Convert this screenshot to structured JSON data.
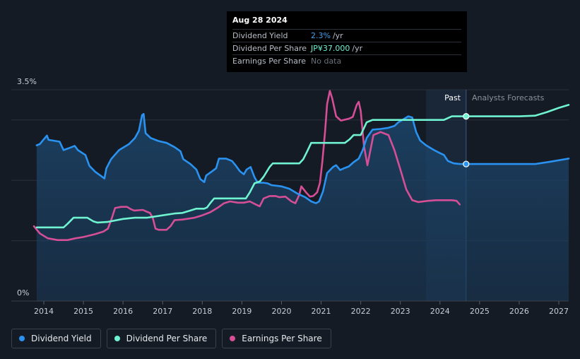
{
  "tooltip": {
    "date": "Aug 28 2024",
    "rows": [
      {
        "label": "Dividend Yield",
        "value": "2.3%",
        "unit": "/yr",
        "color": "#3ea0f0"
      },
      {
        "label": "Dividend Per Share",
        "value": "JP¥37.000",
        "unit": "/yr",
        "color": "#6ff3d0"
      },
      {
        "label": "Earnings Per Share",
        "value": "No data",
        "unit": "",
        "color": "#6b727d"
      }
    ]
  },
  "labels": {
    "past": "Past",
    "forecast": "Analysts Forecasts"
  },
  "legend": [
    {
      "label": "Dividend Yield",
      "color": "#2a92f0"
    },
    {
      "label": "Dividend Per Share",
      "color": "#6ff3d0"
    },
    {
      "label": "Earnings Per Share",
      "color": "#d64f96"
    }
  ],
  "chart_data": {
    "type": "line",
    "x_ticks": [
      "2014",
      "2015",
      "2016",
      "2017",
      "2018",
      "2019",
      "2020",
      "2021",
      "2022",
      "2023",
      "2024",
      "2025",
      "2026",
      "2027"
    ],
    "y_ticks": [
      "3.5%",
      "0%"
    ],
    "ylim": [
      0,
      3.5
    ],
    "xlim": [
      2013.6,
      2027.25
    ],
    "past_end": 2024.66,
    "highlight_start": 2023.65,
    "series": [
      {
        "name": "Dividend Yield",
        "color": "#2a92f0",
        "fill": true,
        "points": [
          [
            2013.82,
            2.58
          ],
          [
            2013.9,
            2.6
          ],
          [
            2014.0,
            2.68
          ],
          [
            2014.08,
            2.74
          ],
          [
            2014.12,
            2.67
          ],
          [
            2014.4,
            2.64
          ],
          [
            2014.5,
            2.5
          ],
          [
            2014.62,
            2.53
          ],
          [
            2014.78,
            2.57
          ],
          [
            2014.86,
            2.5
          ],
          [
            2015.05,
            2.42
          ],
          [
            2015.15,
            2.24
          ],
          [
            2015.3,
            2.14
          ],
          [
            2015.45,
            2.07
          ],
          [
            2015.53,
            2.03
          ],
          [
            2015.58,
            2.2
          ],
          [
            2015.7,
            2.35
          ],
          [
            2015.9,
            2.5
          ],
          [
            2016.15,
            2.6
          ],
          [
            2016.3,
            2.7
          ],
          [
            2016.4,
            2.82
          ],
          [
            2016.48,
            3.08
          ],
          [
            2016.52,
            3.1
          ],
          [
            2016.57,
            2.78
          ],
          [
            2016.7,
            2.7
          ],
          [
            2016.9,
            2.65
          ],
          [
            2017.1,
            2.62
          ],
          [
            2017.3,
            2.55
          ],
          [
            2017.45,
            2.48
          ],
          [
            2017.52,
            2.35
          ],
          [
            2017.7,
            2.27
          ],
          [
            2017.85,
            2.18
          ],
          [
            2017.95,
            2.02
          ],
          [
            2018.05,
            1.97
          ],
          [
            2018.1,
            2.08
          ],
          [
            2018.25,
            2.15
          ],
          [
            2018.35,
            2.2
          ],
          [
            2018.42,
            2.36
          ],
          [
            2018.6,
            2.36
          ],
          [
            2018.75,
            2.32
          ],
          [
            2018.85,
            2.24
          ],
          [
            2018.95,
            2.15
          ],
          [
            2019.05,
            2.1
          ],
          [
            2019.12,
            2.18
          ],
          [
            2019.22,
            2.22
          ],
          [
            2019.32,
            2.05
          ],
          [
            2019.4,
            1.96
          ],
          [
            2019.55,
            1.96
          ],
          [
            2019.65,
            1.95
          ],
          [
            2019.75,
            1.92
          ],
          [
            2020.0,
            1.9
          ],
          [
            2020.2,
            1.86
          ],
          [
            2020.4,
            1.78
          ],
          [
            2020.6,
            1.72
          ],
          [
            2020.75,
            1.65
          ],
          [
            2020.87,
            1.62
          ],
          [
            2020.95,
            1.65
          ],
          [
            2021.05,
            1.82
          ],
          [
            2021.15,
            2.12
          ],
          [
            2021.3,
            2.22
          ],
          [
            2021.38,
            2.25
          ],
          [
            2021.48,
            2.17
          ],
          [
            2021.58,
            2.2
          ],
          [
            2021.7,
            2.23
          ],
          [
            2021.82,
            2.3
          ],
          [
            2021.95,
            2.36
          ],
          [
            2022.05,
            2.5
          ],
          [
            2022.15,
            2.7
          ],
          [
            2022.3,
            2.84
          ],
          [
            2022.5,
            2.85
          ],
          [
            2022.7,
            2.87
          ],
          [
            2022.85,
            2.9
          ],
          [
            2022.95,
            2.96
          ],
          [
            2023.1,
            3.02
          ],
          [
            2023.2,
            3.06
          ],
          [
            2023.3,
            3.04
          ],
          [
            2023.4,
            2.8
          ],
          [
            2023.5,
            2.66
          ],
          [
            2023.65,
            2.58
          ],
          [
            2023.85,
            2.5
          ],
          [
            2024.0,
            2.45
          ],
          [
            2024.1,
            2.42
          ],
          [
            2024.2,
            2.32
          ],
          [
            2024.35,
            2.28
          ],
          [
            2024.5,
            2.27
          ],
          [
            2024.66,
            2.27
          ],
          [
            2025.0,
            2.27
          ],
          [
            2026.0,
            2.27
          ],
          [
            2026.4,
            2.27
          ],
          [
            2026.8,
            2.31
          ],
          [
            2027.25,
            2.36
          ]
        ]
      },
      {
        "name": "Dividend Per Share",
        "color": "#6ff3d0",
        "fill": false,
        "points": [
          [
            2013.82,
            1.22
          ],
          [
            2014.5,
            1.22
          ],
          [
            2014.6,
            1.28
          ],
          [
            2014.75,
            1.38
          ],
          [
            2015.0,
            1.38
          ],
          [
            2015.1,
            1.38
          ],
          [
            2015.25,
            1.32
          ],
          [
            2015.35,
            1.3
          ],
          [
            2015.6,
            1.31
          ],
          [
            2016.0,
            1.36
          ],
          [
            2016.3,
            1.38
          ],
          [
            2016.6,
            1.38
          ],
          [
            2017.0,
            1.42
          ],
          [
            2017.3,
            1.45
          ],
          [
            2017.5,
            1.46
          ],
          [
            2017.7,
            1.5
          ],
          [
            2017.85,
            1.53
          ],
          [
            2018.05,
            1.53
          ],
          [
            2018.12,
            1.55
          ],
          [
            2018.2,
            1.62
          ],
          [
            2018.3,
            1.7
          ],
          [
            2018.95,
            1.7
          ],
          [
            2019.1,
            1.7
          ],
          [
            2019.2,
            1.8
          ],
          [
            2019.32,
            1.95
          ],
          [
            2019.45,
            1.98
          ],
          [
            2019.55,
            2.06
          ],
          [
            2019.7,
            2.22
          ],
          [
            2019.78,
            2.28
          ],
          [
            2020.45,
            2.28
          ],
          [
            2020.55,
            2.35
          ],
          [
            2020.65,
            2.48
          ],
          [
            2020.75,
            2.62
          ],
          [
            2021.6,
            2.62
          ],
          [
            2021.72,
            2.68
          ],
          [
            2021.82,
            2.75
          ],
          [
            2022.0,
            2.75
          ],
          [
            2022.15,
            2.96
          ],
          [
            2022.3,
            3.0
          ],
          [
            2023.75,
            3.0
          ],
          [
            2024.1,
            3.0
          ],
          [
            2024.3,
            3.06
          ],
          [
            2024.66,
            3.06
          ],
          [
            2025.0,
            3.06
          ],
          [
            2026.0,
            3.06
          ],
          [
            2026.4,
            3.07
          ],
          [
            2026.7,
            3.13
          ],
          [
            2027.0,
            3.2
          ],
          [
            2027.25,
            3.25
          ]
        ]
      },
      {
        "name": "Earnings Per Share",
        "color": "#d64f96",
        "fill": false,
        "points": [
          [
            2013.75,
            1.24
          ],
          [
            2013.9,
            1.12
          ],
          [
            2014.1,
            1.04
          ],
          [
            2014.35,
            1.01
          ],
          [
            2014.6,
            1.01
          ],
          [
            2014.8,
            1.04
          ],
          [
            2015.0,
            1.06
          ],
          [
            2015.3,
            1.11
          ],
          [
            2015.5,
            1.15
          ],
          [
            2015.62,
            1.2
          ],
          [
            2015.72,
            1.38
          ],
          [
            2015.8,
            1.54
          ],
          [
            2015.95,
            1.56
          ],
          [
            2016.1,
            1.56
          ],
          [
            2016.2,
            1.52
          ],
          [
            2016.28,
            1.5
          ],
          [
            2016.5,
            1.51
          ],
          [
            2016.6,
            1.48
          ],
          [
            2016.68,
            1.46
          ],
          [
            2016.75,
            1.38
          ],
          [
            2016.82,
            1.2
          ],
          [
            2016.9,
            1.18
          ],
          [
            2017.1,
            1.18
          ],
          [
            2017.2,
            1.24
          ],
          [
            2017.3,
            1.34
          ],
          [
            2017.5,
            1.35
          ],
          [
            2017.8,
            1.38
          ],
          [
            2018.0,
            1.42
          ],
          [
            2018.2,
            1.47
          ],
          [
            2018.4,
            1.55
          ],
          [
            2018.55,
            1.62
          ],
          [
            2018.7,
            1.65
          ],
          [
            2018.9,
            1.63
          ],
          [
            2019.05,
            1.63
          ],
          [
            2019.2,
            1.65
          ],
          [
            2019.35,
            1.6
          ],
          [
            2019.45,
            1.57
          ],
          [
            2019.55,
            1.7
          ],
          [
            2019.7,
            1.74
          ],
          [
            2019.85,
            1.74
          ],
          [
            2019.95,
            1.72
          ],
          [
            2020.1,
            1.73
          ],
          [
            2020.25,
            1.65
          ],
          [
            2020.35,
            1.62
          ],
          [
            2020.45,
            1.76
          ],
          [
            2020.5,
            1.9
          ],
          [
            2020.62,
            1.8
          ],
          [
            2020.72,
            1.73
          ],
          [
            2020.8,
            1.74
          ],
          [
            2020.9,
            1.8
          ],
          [
            2020.97,
            1.96
          ],
          [
            2021.03,
            2.3
          ],
          [
            2021.1,
            2.8
          ],
          [
            2021.15,
            3.26
          ],
          [
            2021.22,
            3.48
          ],
          [
            2021.28,
            3.36
          ],
          [
            2021.38,
            3.06
          ],
          [
            2021.5,
            2.99
          ],
          [
            2021.7,
            3.02
          ],
          [
            2021.8,
            3.05
          ],
          [
            2021.9,
            3.25
          ],
          [
            2021.95,
            3.3
          ],
          [
            2022.0,
            3.15
          ],
          [
            2022.08,
            2.58
          ],
          [
            2022.17,
            2.25
          ],
          [
            2022.22,
            2.42
          ],
          [
            2022.32,
            2.75
          ],
          [
            2022.5,
            2.8
          ],
          [
            2022.7,
            2.75
          ],
          [
            2022.85,
            2.5
          ],
          [
            2023.0,
            2.18
          ],
          [
            2023.15,
            1.85
          ],
          [
            2023.3,
            1.67
          ],
          [
            2023.45,
            1.64
          ],
          [
            2023.7,
            1.66
          ],
          [
            2023.9,
            1.67
          ],
          [
            2024.1,
            1.67
          ],
          [
            2024.3,
            1.67
          ],
          [
            2024.42,
            1.66
          ],
          [
            2024.5,
            1.6
          ]
        ]
      }
    ],
    "markers": [
      {
        "series": "Dividend Per Share",
        "x": 2024.66,
        "y": 3.06
      },
      {
        "series": "Dividend Yield",
        "x": 2024.66,
        "y": 2.27
      }
    ]
  }
}
